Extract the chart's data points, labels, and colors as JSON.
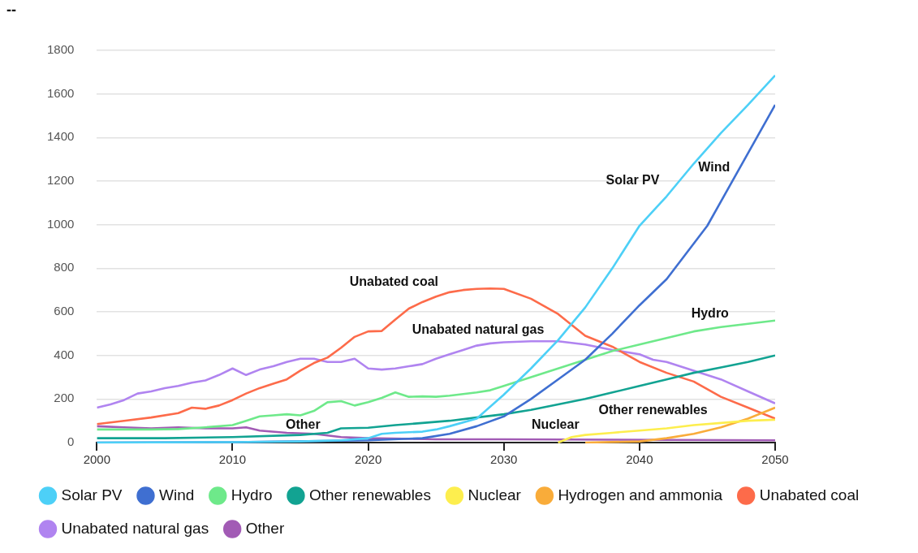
{
  "chart_data": {
    "type": "line",
    "xlim": [
      2000,
      2050
    ],
    "xticks": [
      2000,
      2010,
      2020,
      2030,
      2040,
      2050
    ],
    "ylim": [
      0,
      1800
    ],
    "yticks": [
      0,
      200,
      400,
      600,
      800,
      1000,
      1200,
      1400,
      1600,
      1800
    ],
    "grid": "y",
    "legend": "bottom",
    "marker": "none",
    "annotations": [
      "--"
    ],
    "series": [
      {
        "name": "Solar PV",
        "color": "#4dd0f7",
        "x": [
          2000,
          2010,
          2015,
          2018,
          2020,
          2021,
          2022,
          2024,
          2025,
          2026,
          2028,
          2030,
          2032,
          2034,
          2036,
          2038,
          2040,
          2042,
          2044,
          2046,
          2048,
          2050
        ],
        "values": [
          0,
          2,
          5,
          10,
          20,
          40,
          45,
          50,
          60,
          75,
          110,
          220,
          340,
          470,
          620,
          800,
          995,
          1130,
          1280,
          1420,
          1550,
          1685
        ]
      },
      {
        "name": "Wind",
        "color": "#3f6fd1",
        "x": [
          2000,
          2010,
          2020,
          2024,
          2026,
          2028,
          2030,
          2032,
          2034,
          2036,
          2038,
          2040,
          2042,
          2045,
          2050
        ],
        "values": [
          0,
          2,
          10,
          20,
          40,
          75,
          120,
          200,
          290,
          380,
          500,
          630,
          750,
          995,
          1550
        ]
      },
      {
        "name": "Hydro",
        "color": "#6ee98a",
        "x": [
          2000,
          2004,
          2006,
          2008,
          2010,
          2011,
          2012,
          2013,
          2014,
          2015,
          2016,
          2017,
          2018,
          2019,
          2020,
          2021,
          2022,
          2023,
          2024,
          2025,
          2026,
          2028,
          2029,
          2030,
          2032,
          2034,
          2036,
          2038,
          2040,
          2042,
          2044,
          2046,
          2048,
          2050
        ],
        "values": [
          60,
          60,
          62,
          70,
          80,
          100,
          120,
          125,
          130,
          125,
          145,
          185,
          190,
          170,
          185,
          205,
          230,
          210,
          212,
          210,
          215,
          230,
          240,
          260,
          300,
          340,
          380,
          420,
          450,
          480,
          510,
          530,
          545,
          560
        ]
      },
      {
        "name": "Other renewables",
        "color": "#12a392",
        "x": [
          2000,
          2005,
          2010,
          2015,
          2017,
          2018,
          2020,
          2022,
          2024,
          2026,
          2028,
          2030,
          2032,
          2034,
          2036,
          2038,
          2040,
          2042,
          2044,
          2046,
          2048,
          2050
        ],
        "values": [
          20,
          20,
          25,
          35,
          45,
          65,
          68,
          80,
          90,
          100,
          115,
          130,
          150,
          175,
          200,
          230,
          260,
          290,
          320,
          345,
          370,
          400
        ]
      },
      {
        "name": "Nuclear",
        "color": "#fdee4e",
        "x": [
          2034,
          2035,
          2036,
          2038,
          2040,
          2042,
          2044,
          2046,
          2048,
          2050
        ],
        "values": [
          0,
          25,
          35,
          45,
          55,
          65,
          80,
          90,
          100,
          105
        ]
      },
      {
        "name": "Hydrogen and ammonia",
        "color": "#f9ac3a",
        "x": [
          2036,
          2040,
          2042,
          2044,
          2046,
          2048,
          2050
        ],
        "values": [
          0,
          5,
          20,
          40,
          70,
          110,
          160
        ]
      },
      {
        "name": "Unabated coal",
        "color": "#fd6b4a",
        "x": [
          2000,
          2002,
          2004,
          2006,
          2007,
          2008,
          2009,
          2010,
          2011,
          2012,
          2013,
          2014,
          2015,
          2016,
          2017,
          2018,
          2019,
          2020,
          2021,
          2022,
          2023,
          2024,
          2025,
          2026,
          2027,
          2028,
          2029,
          2030,
          2032,
          2034,
          2036,
          2038,
          2040,
          2042,
          2044,
          2046,
          2048,
          2050
        ],
        "values": [
          85,
          100,
          115,
          135,
          160,
          155,
          170,
          195,
          225,
          250,
          270,
          290,
          330,
          365,
          390,
          435,
          485,
          510,
          512,
          565,
          615,
          645,
          670,
          690,
          700,
          705,
          707,
          705,
          660,
          590,
          490,
          440,
          370,
          320,
          280,
          210,
          160,
          110
        ]
      },
      {
        "name": "Unabated natural gas",
        "color": "#b084f0",
        "x": [
          2000,
          2001,
          2002,
          2003,
          2004,
          2005,
          2006,
          2007,
          2008,
          2009,
          2010,
          2011,
          2012,
          2013,
          2014,
          2015,
          2016,
          2017,
          2018,
          2019,
          2020,
          2021,
          2022,
          2023,
          2024,
          2025,
          2026,
          2027,
          2028,
          2029,
          2030,
          2032,
          2034,
          2036,
          2038,
          2040,
          2041,
          2042,
          2044,
          2046,
          2048,
          2050
        ],
        "values": [
          160,
          175,
          195,
          225,
          235,
          250,
          260,
          275,
          285,
          310,
          340,
          310,
          335,
          350,
          370,
          385,
          385,
          370,
          370,
          385,
          340,
          335,
          340,
          350,
          360,
          385,
          405,
          425,
          445,
          455,
          460,
          465,
          465,
          450,
          425,
          405,
          380,
          370,
          330,
          290,
          235,
          180
        ]
      },
      {
        "name": "Other",
        "color": "#a25bb5",
        "x": [
          2000,
          2002,
          2004,
          2006,
          2008,
          2010,
          2011,
          2012,
          2014,
          2016,
          2018,
          2020,
          2025,
          2030,
          2050
        ],
        "values": [
          75,
          70,
          65,
          70,
          65,
          65,
          70,
          55,
          45,
          40,
          25,
          20,
          15,
          15,
          10
        ]
      }
    ]
  }
}
